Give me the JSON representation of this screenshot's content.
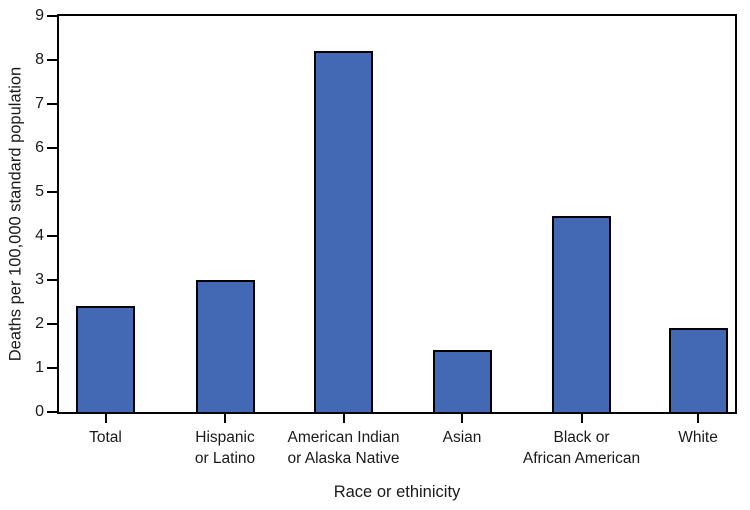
{
  "chart_data": {
    "type": "bar",
    "title": "",
    "xlabel": "Race or ethinicity",
    "ylabel": "Deaths per 100,000 standard population",
    "categories": [
      "Total",
      "Hispanic or Latino",
      "American Indian or Alaska Native",
      "Asian",
      "Black or African American",
      "White"
    ],
    "category_label_lines": [
      [
        "Total"
      ],
      [
        "Hispanic",
        "or Latino"
      ],
      [
        "American Indian",
        "or Alaska Native"
      ],
      [
        "Asian"
      ],
      [
        "Black or",
        "African American"
      ],
      [
        "White"
      ]
    ],
    "values": [
      2.4,
      3.0,
      8.2,
      1.4,
      4.45,
      1.9
    ],
    "ylim": [
      0,
      9
    ],
    "yticks": [
      0,
      1,
      2,
      3,
      4,
      5,
      6,
      7,
      8,
      9
    ],
    "grid": false,
    "legend": null,
    "bar_color": "#4369B4",
    "bar_edge_color": "#000000",
    "axis_color": "#000000"
  }
}
